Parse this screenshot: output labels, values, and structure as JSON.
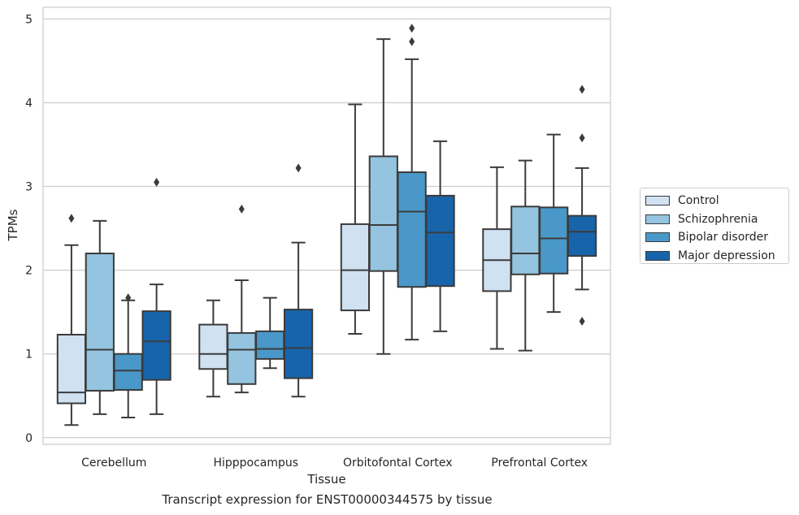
{
  "chart_data": {
    "type": "box",
    "title": "",
    "caption": "Transcript expression for ENST00000344575 by tissue",
    "xlabel": "Tissue",
    "ylabel": "TPMs",
    "ylim": [
      -0.08,
      5.14
    ],
    "yticks": [
      0,
      1,
      2,
      3,
      4,
      5
    ],
    "grid": true,
    "legend_position": "right",
    "categories": [
      "Cerebellum",
      "Hipppocampus",
      "Orbitofontal Cortex",
      "Prefrontal Cortex"
    ],
    "series": [
      {
        "name": "Control",
        "color": "#d0e1f2",
        "boxes": [
          {
            "whislo": 0.15,
            "q1": 0.41,
            "med": 0.54,
            "q3": 1.23,
            "whishi": 2.3,
            "fliers": [
              2.62
            ]
          },
          {
            "whislo": 0.49,
            "q1": 0.82,
            "med": 1.0,
            "q3": 1.35,
            "whishi": 1.64,
            "fliers": []
          },
          {
            "whislo": 1.24,
            "q1": 1.52,
            "med": 2.0,
            "q3": 2.55,
            "whishi": 3.98,
            "fliers": []
          },
          {
            "whislo": 1.06,
            "q1": 1.75,
            "med": 2.12,
            "q3": 2.49,
            "whishi": 3.23,
            "fliers": []
          }
        ]
      },
      {
        "name": "Schizophrenia",
        "color": "#94c4df",
        "boxes": [
          {
            "whislo": 0.28,
            "q1": 0.56,
            "med": 1.05,
            "q3": 2.2,
            "whishi": 2.59,
            "fliers": []
          },
          {
            "whislo": 0.54,
            "q1": 0.64,
            "med": 1.05,
            "q3": 1.25,
            "whishi": 1.88,
            "fliers": [
              2.73
            ]
          },
          {
            "whislo": 1.0,
            "q1": 1.99,
            "med": 2.54,
            "q3": 3.36,
            "whishi": 4.76,
            "fliers": []
          },
          {
            "whislo": 1.04,
            "q1": 1.95,
            "med": 2.2,
            "q3": 2.76,
            "whishi": 3.31,
            "fliers": []
          }
        ]
      },
      {
        "name": "Bipolar disorder",
        "color": "#4a98c9",
        "boxes": [
          {
            "whislo": 0.24,
            "q1": 0.57,
            "med": 0.8,
            "q3": 1.0,
            "whishi": 1.64,
            "fliers": [
              1.67
            ]
          },
          {
            "whislo": 0.83,
            "q1": 0.94,
            "med": 1.06,
            "q3": 1.27,
            "whishi": 1.67,
            "fliers": []
          },
          {
            "whislo": 1.17,
            "q1": 1.8,
            "med": 2.7,
            "q3": 3.17,
            "whishi": 4.52,
            "fliers": [
              4.73,
              4.89
            ]
          },
          {
            "whislo": 1.5,
            "q1": 1.96,
            "med": 2.38,
            "q3": 2.75,
            "whishi": 3.62,
            "fliers": []
          }
        ]
      },
      {
        "name": "Major depression",
        "color": "#1764ab",
        "boxes": [
          {
            "whislo": 0.28,
            "q1": 0.69,
            "med": 1.15,
            "q3": 1.51,
            "whishi": 1.83,
            "fliers": [
              3.05
            ]
          },
          {
            "whislo": 0.49,
            "q1": 0.71,
            "med": 1.07,
            "q3": 1.53,
            "whishi": 2.33,
            "fliers": [
              3.22
            ]
          },
          {
            "whislo": 1.27,
            "q1": 1.81,
            "med": 2.45,
            "q3": 2.89,
            "whishi": 3.54,
            "fliers": []
          },
          {
            "whislo": 1.77,
            "q1": 2.17,
            "med": 2.46,
            "q3": 2.65,
            "whishi": 3.22,
            "fliers": [
              1.39,
              3.58,
              4.16
            ]
          }
        ]
      }
    ]
  }
}
